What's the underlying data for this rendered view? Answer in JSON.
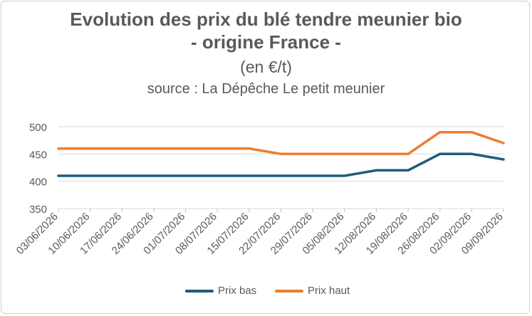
{
  "chart_data": {
    "type": "line",
    "title": "Evolution des prix du blé tendre meunier bio",
    "subtitle": "- origine France -",
    "unit": "(en €/t)",
    "source": "source : La Dépêche Le petit meunier",
    "categories": [
      "03/06/2026",
      "10/06/2026",
      "17/06/2026",
      "24/06/2026",
      "01/07/2026",
      "08/07/2026",
      "15/07/2026",
      "22/07/2026",
      "29/07/2026",
      "05/08/2026",
      "12/08/2026",
      "19/08/2026",
      "26/08/2026",
      "02/09/2026",
      "09/09/2026"
    ],
    "series": [
      {
        "name": "Prix bas",
        "color": "#1F5C7A",
        "values": [
          410,
          410,
          410,
          410,
          410,
          410,
          410,
          410,
          410,
          410,
          420,
          420,
          450,
          450,
          440
        ]
      },
      {
        "name": "Prix haut",
        "color": "#ED7D31",
        "values": [
          460,
          460,
          460,
          460,
          460,
          460,
          460,
          450,
          450,
          450,
          450,
          450,
          490,
          490,
          470
        ]
      }
    ],
    "ylim": [
      350,
      500
    ],
    "yticks": [
      "350",
      "400",
      "450",
      "500"
    ],
    "grid": true,
    "legend_position": "bottom"
  }
}
